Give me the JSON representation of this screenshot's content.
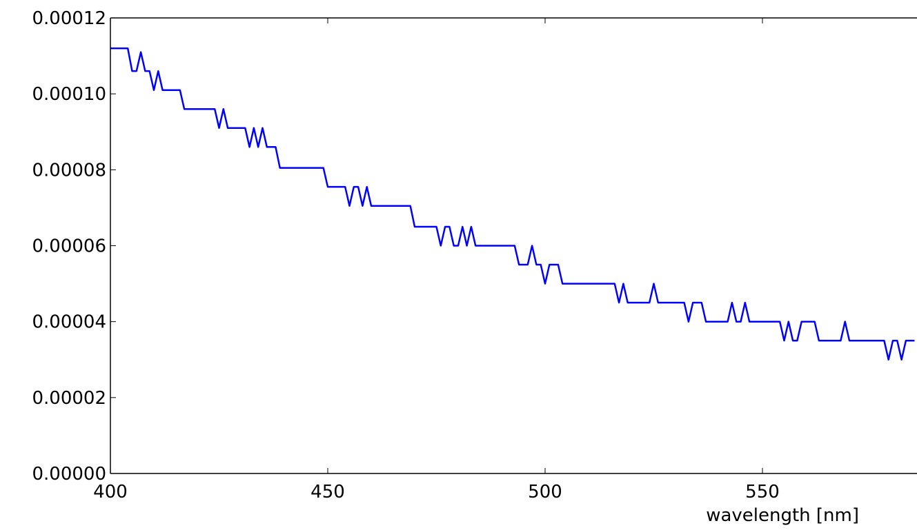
{
  "chart_data": {
    "type": "line",
    "title": "",
    "xlabel": "wavelength [nm]",
    "ylabel": "",
    "xlim": [
      400,
      585
    ],
    "ylim": [
      0,
      0.00012
    ],
    "grid": false,
    "legend": "none",
    "x_ticks": [
      400,
      450,
      500,
      550
    ],
    "x_tick_labels": [
      "400",
      "450",
      "500",
      "550"
    ],
    "y_ticks": [
      0,
      2e-05,
      4e-05,
      6e-05,
      8e-05,
      0.0001,
      0.00012
    ],
    "y_tick_labels": [
      "0.00000",
      "0.00002",
      "0.00004",
      "0.00006",
      "0.00008",
      "0.00010",
      "0.00012"
    ],
    "series": [
      {
        "color": "#0000ff",
        "x": [
          400,
          404,
          405,
          406,
          407,
          408,
          409,
          410,
          411,
          412,
          416,
          417,
          424,
          425,
          426,
          427,
          431,
          432,
          433,
          434,
          435,
          436,
          438,
          439,
          449,
          450,
          454,
          455,
          456,
          457,
          458,
          459,
          460,
          469,
          470,
          475,
          476,
          477,
          478,
          479,
          480,
          481,
          482,
          483,
          484,
          493,
          494,
          496,
          497,
          498,
          499,
          500,
          501,
          503,
          504,
          516,
          517,
          518,
          519,
          524,
          525,
          526,
          532,
          533,
          534,
          536,
          537,
          542,
          543,
          544,
          545,
          546,
          547,
          548,
          554,
          555,
          556,
          557,
          558,
          559,
          562,
          563,
          568,
          569,
          570,
          578,
          579,
          580,
          581,
          582,
          583,
          585
        ],
        "y": [
          0.000112,
          0.000112,
          0.000106,
          0.000106,
          0.000111,
          0.000106,
          0.000106,
          0.000101,
          0.000106,
          0.000101,
          0.000101,
          9.6e-05,
          9.6e-05,
          9.1e-05,
          9.6e-05,
          9.1e-05,
          9.1e-05,
          8.6e-05,
          9.1e-05,
          8.6e-05,
          9.1e-05,
          8.6e-05,
          8.6e-05,
          8.05e-05,
          8.05e-05,
          7.55e-05,
          7.55e-05,
          7.05e-05,
          7.55e-05,
          7.55e-05,
          7.05e-05,
          7.55e-05,
          7.05e-05,
          7.05e-05,
          6.5e-05,
          6.5e-05,
          6e-05,
          6.5e-05,
          6.5e-05,
          6e-05,
          6e-05,
          6.5e-05,
          6e-05,
          6.5e-05,
          6e-05,
          6e-05,
          5.5e-05,
          5.5e-05,
          6e-05,
          5.5e-05,
          5.5e-05,
          5e-05,
          5.5e-05,
          5.5e-05,
          5e-05,
          5e-05,
          4.5e-05,
          5e-05,
          4.5e-05,
          4.5e-05,
          5e-05,
          4.5e-05,
          4.5e-05,
          4e-05,
          4.5e-05,
          4.5e-05,
          4e-05,
          4e-05,
          4.5e-05,
          4e-05,
          4e-05,
          4.5e-05,
          4e-05,
          4e-05,
          4e-05,
          3.5e-05,
          4e-05,
          3.5e-05,
          3.5e-05,
          4e-05,
          4e-05,
          3.5e-05,
          3.5e-05,
          4e-05,
          3.5e-05,
          3.5e-05,
          3e-05,
          3.5e-05,
          3.5e-05,
          3e-05,
          3.5e-05,
          3.5e-05
        ]
      }
    ]
  }
}
